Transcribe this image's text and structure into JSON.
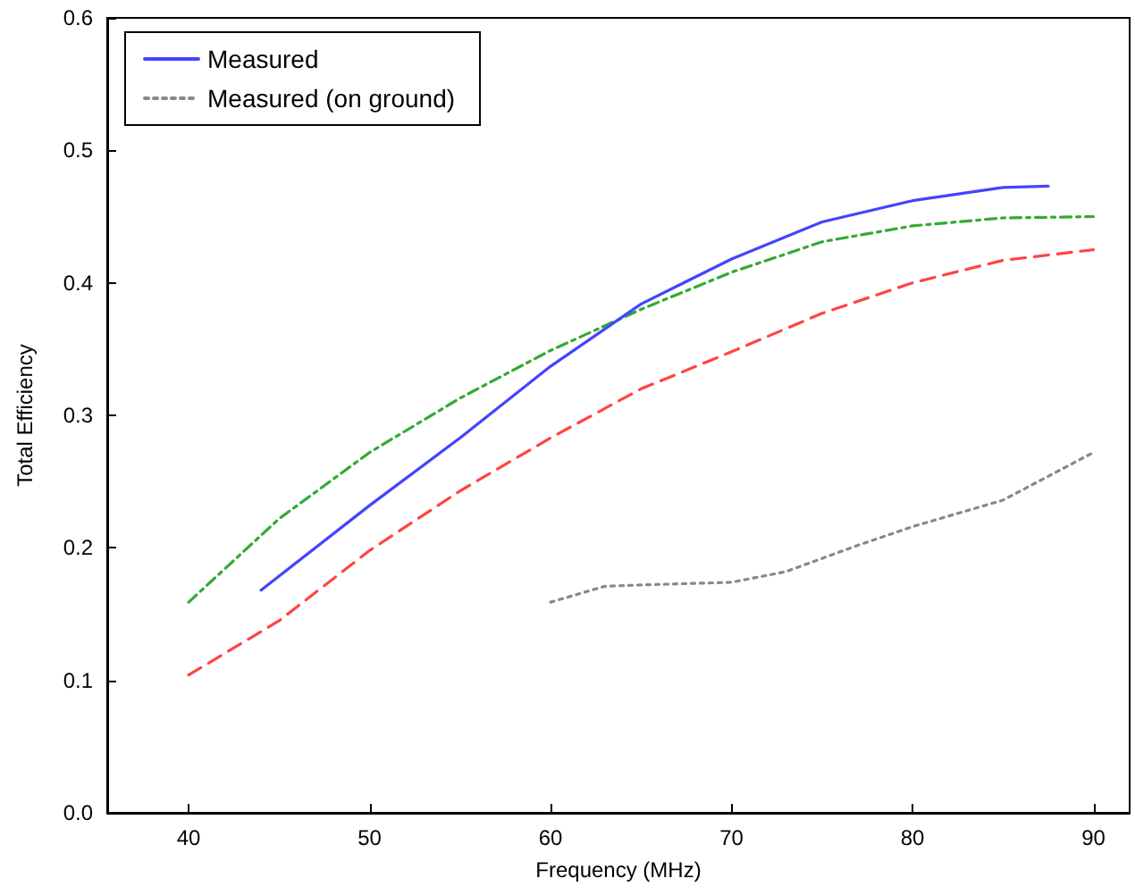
{
  "chart_data": {
    "type": "line",
    "xlabel": "Frequency (MHz)",
    "ylabel": "Total Efficiency",
    "xlim": [
      35.5,
      92
    ],
    "xticks": [
      40,
      50,
      60,
      70,
      80,
      90
    ],
    "ylim": [
      0,
      0.6
    ],
    "yticks": [
      {
        "value": 0,
        "label": "0.0"
      },
      0.1,
      0.2,
      0.3,
      0.4,
      0.5,
      0.6
    ],
    "grid": false,
    "legend": "top left",
    "marker": "none",
    "series": [
      {
        "color": "#ff4444",
        "line_style": "dashed",
        "x": [
          40,
          45,
          50,
          55,
          60,
          65,
          70,
          75,
          80,
          85,
          90
        ],
        "values": [
          0.104,
          0.145,
          0.198,
          0.243,
          0.283,
          0.32,
          0.348,
          0.377,
          0.4,
          0.417,
          0.425
        ]
      },
      {
        "color": "#33aa33",
        "line_style": "dashdot",
        "x": [
          40,
          45,
          50,
          55,
          60,
          65,
          70,
          75,
          80,
          85,
          90
        ],
        "values": [
          0.159,
          0.222,
          0.272,
          0.313,
          0.349,
          0.38,
          0.408,
          0.431,
          0.443,
          0.449,
          0.45
        ]
      },
      {
        "name": "Measured",
        "color": "#4444ff",
        "line_style": "solid",
        "x": [
          44,
          50,
          55,
          60,
          65,
          70,
          75,
          80,
          85,
          87.5
        ],
        "values": [
          0.168,
          0.232,
          0.283,
          0.337,
          0.384,
          0.418,
          0.446,
          0.462,
          0.472,
          0.473
        ]
      },
      {
        "name": "Measured (on ground)",
        "color": "#888888",
        "line_style": "dotted",
        "x": [
          60,
          63,
          65,
          70,
          73,
          77,
          80,
          85,
          90
        ],
        "values": [
          0.159,
          0.171,
          0.172,
          0.174,
          0.182,
          0.202,
          0.216,
          0.236,
          0.272
        ]
      }
    ]
  }
}
